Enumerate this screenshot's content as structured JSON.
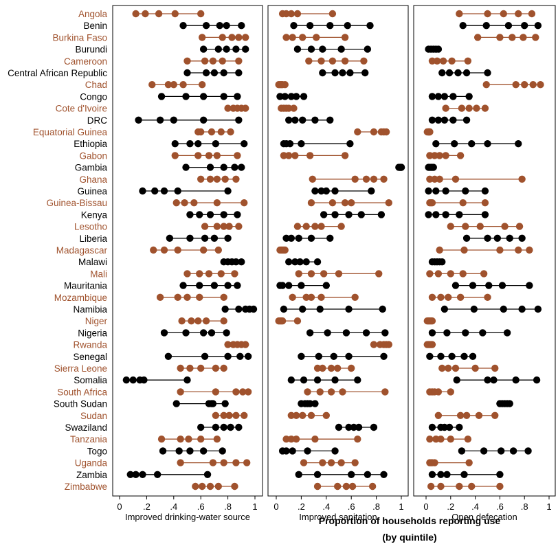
{
  "colors": {
    "odd": "#a0522d",
    "even": "#000000",
    "frame": "#000000",
    "background": "#ffffff"
  },
  "chart_data": {
    "type": "scatter",
    "subtype": "dot-range plot",
    "xlabel": "Proportion of households reporting use",
    "xlabel_sub": "(by quintile)",
    "xlim": [
      0,
      1
    ],
    "xticks": [
      0,
      0.2,
      0.4,
      0.6,
      0.8,
      1
    ],
    "xtick_labels": [
      "0",
      ".2",
      ".4",
      ".6",
      ".8",
      "1"
    ],
    "panels": [
      "Improved drinking-water source",
      "Improved sanitation",
      "Open defecation"
    ],
    "countries": [
      {
        "name": "Angola",
        "values": [
          [
            0.12,
            0.19,
            0.29,
            0.41,
            0.6
          ],
          [
            0.05,
            0.08,
            0.12,
            0.17,
            0.45
          ],
          [
            0.27,
            0.5,
            0.63,
            0.75,
            0.86
          ]
        ]
      },
      {
        "name": "Benin",
        "values": [
          [
            0.47,
            0.64,
            0.74,
            0.79,
            0.9
          ],
          [
            0.14,
            0.27,
            0.43,
            0.57,
            0.75
          ],
          [
            0.3,
            0.49,
            0.67,
            0.8,
            0.91
          ]
        ]
      },
      {
        "name": "Burkina Faso",
        "values": [
          [
            0.61,
            0.76,
            0.83,
            0.88,
            0.93
          ],
          [
            0.08,
            0.13,
            0.21,
            0.32,
            0.55
          ],
          [
            0.42,
            0.6,
            0.7,
            0.79,
            0.89
          ]
        ]
      },
      {
        "name": "Burundi",
        "values": [
          [
            0.62,
            0.73,
            0.79,
            0.86,
            0.93
          ],
          [
            0.17,
            0.28,
            0.37,
            0.52,
            0.73
          ],
          [
            0.02,
            0.04,
            0.06,
            0.08,
            0.1
          ]
        ]
      },
      {
        "name": "Cameroon",
        "values": [
          [
            0.5,
            0.63,
            0.69,
            0.76,
            0.88
          ],
          [
            0.26,
            0.36,
            0.45,
            0.55,
            0.7
          ],
          [
            0.05,
            0.09,
            0.14,
            0.21,
            0.34
          ]
        ]
      },
      {
        "name": "Central African Republic",
        "values": [
          [
            0.5,
            0.64,
            0.7,
            0.77,
            0.88
          ],
          [
            0.37,
            0.47,
            0.53,
            0.59,
            0.71
          ],
          [
            0.13,
            0.19,
            0.26,
            0.33,
            0.5
          ]
        ]
      },
      {
        "name": "Chad",
        "values": [
          [
            0.24,
            0.36,
            0.4,
            0.47,
            0.61
          ],
          [
            0.02,
            0.03,
            0.04,
            0.05,
            0.07
          ],
          [
            0.49,
            0.73,
            0.8,
            0.87,
            0.93
          ]
        ]
      },
      {
        "name": "Congo",
        "values": [
          [
            0.31,
            0.49,
            0.62,
            0.77,
            0.87
          ],
          [
            0.03,
            0.07,
            0.12,
            0.16,
            0.22
          ],
          [
            0.05,
            0.1,
            0.15,
            0.22,
            0.35
          ]
        ]
      },
      {
        "name": "Cote d'Ivoire",
        "values": [
          [
            0.8,
            0.84,
            0.87,
            0.9,
            0.93
          ],
          [
            0.04,
            0.06,
            0.08,
            0.1,
            0.14
          ],
          [
            0.16,
            0.29,
            0.35,
            0.41,
            0.48
          ]
        ]
      },
      {
        "name": "DRC",
        "values": [
          [
            0.14,
            0.3,
            0.4,
            0.62,
            0.88
          ],
          [
            0.1,
            0.15,
            0.21,
            0.31,
            0.43
          ],
          [
            0.05,
            0.1,
            0.15,
            0.22,
            0.33
          ]
        ]
      },
      {
        "name": "Equatorial Guinea",
        "values": [
          [
            0.58,
            0.6,
            0.68,
            0.75,
            0.82
          ],
          [
            0.65,
            0.78,
            0.84,
            0.86,
            0.88
          ],
          [
            0.01,
            0.02,
            0.02,
            0.03,
            0.03
          ]
        ]
      },
      {
        "name": "Ethiopia",
        "values": [
          [
            0.41,
            0.52,
            0.58,
            0.71,
            0.92
          ],
          [
            0.06,
            0.08,
            0.11,
            0.2,
            0.59
          ],
          [
            0.08,
            0.23,
            0.37,
            0.5,
            0.75
          ]
        ]
      },
      {
        "name": "Gabon",
        "values": [
          [
            0.41,
            0.58,
            0.66,
            0.72,
            0.87
          ],
          [
            0.06,
            0.1,
            0.15,
            0.27,
            0.55
          ],
          [
            0.03,
            0.07,
            0.11,
            0.16,
            0.28
          ]
        ]
      },
      {
        "name": "Gambia",
        "values": [
          [
            0.49,
            0.67,
            0.77,
            0.85,
            0.9
          ],
          [
            0.98,
            0.99,
            0.99,
            1.0,
            1.0
          ],
          [
            0.02,
            0.03,
            0.04,
            0.05,
            0.06
          ]
        ]
      },
      {
        "name": "Ghana",
        "values": [
          [
            0.6,
            0.67,
            0.72,
            0.78,
            0.86
          ],
          [
            0.29,
            0.63,
            0.72,
            0.78,
            0.86
          ],
          [
            0.03,
            0.07,
            0.11,
            0.24,
            0.78
          ]
        ]
      },
      {
        "name": "Guinea",
        "values": [
          [
            0.17,
            0.26,
            0.33,
            0.43,
            0.8
          ],
          [
            0.31,
            0.36,
            0.4,
            0.47,
            0.76
          ],
          [
            0.02,
            0.08,
            0.16,
            0.32,
            0.48
          ]
        ]
      },
      {
        "name": "Guinea-Bissau",
        "values": [
          [
            0.42,
            0.48,
            0.55,
            0.72,
            0.92
          ],
          [
            0.28,
            0.45,
            0.55,
            0.6,
            0.9
          ],
          [
            0.03,
            0.04,
            0.05,
            0.3,
            0.48
          ]
        ]
      },
      {
        "name": "Kenya",
        "values": [
          [
            0.52,
            0.59,
            0.67,
            0.77,
            0.87
          ],
          [
            0.38,
            0.47,
            0.58,
            0.68,
            0.84
          ],
          [
            0.02,
            0.08,
            0.16,
            0.27,
            0.48
          ]
        ]
      },
      {
        "name": "Lesotho",
        "values": [
          [
            0.63,
            0.72,
            0.77,
            0.81,
            0.88
          ],
          [
            0.17,
            0.24,
            0.31,
            0.36,
            0.52
          ],
          [
            0.2,
            0.32,
            0.44,
            0.64,
            0.76
          ]
        ]
      },
      {
        "name": "Liberia",
        "values": [
          [
            0.37,
            0.52,
            0.63,
            0.7,
            0.8
          ],
          [
            0.08,
            0.12,
            0.18,
            0.28,
            0.43
          ],
          [
            0.33,
            0.5,
            0.58,
            0.68,
            0.78
          ]
        ]
      },
      {
        "name": "Madagascar",
        "values": [
          [
            0.25,
            0.33,
            0.43,
            0.62,
            0.73
          ],
          [
            0.03,
            0.04,
            0.05,
            0.06,
            0.07
          ],
          [
            0.11,
            0.31,
            0.6,
            0.75,
            0.84
          ]
        ]
      },
      {
        "name": "Malawi",
        "values": [
          [
            0.77,
            0.8,
            0.83,
            0.86,
            0.9
          ],
          [
            0.1,
            0.15,
            0.19,
            0.24,
            0.33
          ],
          [
            0.05,
            0.07,
            0.09,
            0.11,
            0.13
          ]
        ]
      },
      {
        "name": "Mali",
        "values": [
          [
            0.5,
            0.59,
            0.66,
            0.75,
            0.85
          ],
          [
            0.18,
            0.28,
            0.38,
            0.5,
            0.82
          ],
          [
            0.03,
            0.1,
            0.2,
            0.3,
            0.47
          ]
        ]
      },
      {
        "name": "Mauritania",
        "values": [
          [
            0.47,
            0.59,
            0.7,
            0.8,
            0.87
          ],
          [
            0.03,
            0.05,
            0.1,
            0.2,
            0.4
          ],
          [
            0.24,
            0.38,
            0.51,
            0.62,
            0.84
          ]
        ]
      },
      {
        "name": "Mozambique",
        "values": [
          [
            0.3,
            0.43,
            0.5,
            0.59,
            0.77
          ],
          [
            0.13,
            0.24,
            0.28,
            0.36,
            0.63
          ],
          [
            0.05,
            0.12,
            0.18,
            0.28,
            0.5
          ]
        ]
      },
      {
        "name": "Namibia",
        "values": [
          [
            0.78,
            0.88,
            0.93,
            0.96,
            0.99
          ],
          [
            0.06,
            0.21,
            0.35,
            0.58,
            0.85
          ],
          [
            0.15,
            0.39,
            0.63,
            0.78,
            0.91
          ]
        ]
      },
      {
        "name": "Niger",
        "values": [
          [
            0.46,
            0.53,
            0.58,
            0.64,
            0.77
          ],
          [
            0.02,
            0.03,
            0.04,
            0.05,
            0.17
          ],
          [
            0.01,
            0.02,
            0.03,
            0.04,
            0.05
          ]
        ]
      },
      {
        "name": "Nigeria",
        "values": [
          [
            0.33,
            0.49,
            0.62,
            0.68,
            0.79
          ],
          [
            0.27,
            0.41,
            0.56,
            0.72,
            0.87
          ],
          [
            0.05,
            0.17,
            0.32,
            0.46,
            0.66
          ]
        ]
      },
      {
        "name": "Rwanda",
        "values": [
          [
            0.8,
            0.84,
            0.87,
            0.9,
            0.93
          ],
          [
            0.78,
            0.83,
            0.86,
            0.88,
            0.9
          ],
          [
            0.01,
            0.02,
            0.03,
            0.04,
            0.05
          ]
        ]
      },
      {
        "name": "Senegal",
        "values": [
          [
            0.36,
            0.63,
            0.8,
            0.89,
            0.95
          ],
          [
            0.2,
            0.34,
            0.46,
            0.58,
            0.86
          ],
          [
            0.03,
            0.12,
            0.21,
            0.31,
            0.38
          ]
        ]
      },
      {
        "name": "Sierra Leone",
        "values": [
          [
            0.45,
            0.52,
            0.6,
            0.71,
            0.77
          ],
          [
            0.33,
            0.37,
            0.44,
            0.49,
            0.6
          ],
          [
            0.13,
            0.18,
            0.24,
            0.4,
            0.56
          ]
        ]
      },
      {
        "name": "Somalia",
        "values": [
          [
            0.05,
            0.1,
            0.15,
            0.18,
            0.5
          ],
          [
            0.12,
            0.22,
            0.33,
            0.47,
            0.65
          ],
          [
            0.25,
            0.5,
            0.55,
            0.73,
            0.9
          ]
        ]
      },
      {
        "name": "South Africa",
        "values": [
          [
            0.45,
            0.71,
            0.86,
            0.91,
            0.95
          ],
          [
            0.25,
            0.35,
            0.44,
            0.53,
            0.87
          ],
          [
            0.03,
            0.05,
            0.07,
            0.1,
            0.2
          ]
        ]
      },
      {
        "name": "South Sudan",
        "values": [
          [
            0.42,
            0.66,
            0.68,
            0.69,
            0.78
          ],
          [
            0.2,
            0.23,
            0.25,
            0.27,
            0.31
          ],
          [
            0.6,
            0.62,
            0.64,
            0.66,
            0.68
          ]
        ]
      },
      {
        "name": "Sudan",
        "values": [
          [
            0.71,
            0.77,
            0.81,
            0.86,
            0.92
          ],
          [
            0.12,
            0.16,
            0.21,
            0.28,
            0.4
          ],
          [
            0.1,
            0.28,
            0.33,
            0.43,
            0.56
          ]
        ]
      },
      {
        "name": "Swaziland",
        "values": [
          [
            0.6,
            0.71,
            0.77,
            0.82,
            0.88
          ],
          [
            0.5,
            0.58,
            0.62,
            0.66,
            0.78
          ],
          [
            0.05,
            0.12,
            0.15,
            0.19,
            0.27
          ]
        ]
      },
      {
        "name": "Tanzania",
        "values": [
          [
            0.31,
            0.45,
            0.51,
            0.6,
            0.72
          ],
          [
            0.08,
            0.12,
            0.16,
            0.31,
            0.65
          ],
          [
            0.03,
            0.08,
            0.12,
            0.2,
            0.34
          ]
        ]
      },
      {
        "name": "Togo",
        "values": [
          [
            0.32,
            0.44,
            0.52,
            0.62,
            0.76
          ],
          [
            0.05,
            0.08,
            0.13,
            0.25,
            0.47
          ],
          [
            0.29,
            0.47,
            0.61,
            0.71,
            0.83
          ]
        ]
      },
      {
        "name": "Uganda",
        "values": [
          [
            0.45,
            0.69,
            0.77,
            0.86,
            0.94
          ],
          [
            0.22,
            0.37,
            0.44,
            0.52,
            0.63
          ],
          [
            0.03,
            0.04,
            0.05,
            0.07,
            0.35
          ]
        ]
      },
      {
        "name": "Zambia",
        "values": [
          [
            0.08,
            0.12,
            0.17,
            0.28,
            0.65
          ],
          [
            0.18,
            0.33,
            0.6,
            0.73,
            0.86
          ],
          [
            0.05,
            0.12,
            0.17,
            0.31,
            0.6
          ]
        ]
      },
      {
        "name": "Zimbabwe",
        "values": [
          [
            0.56,
            0.61,
            0.67,
            0.73,
            0.85
          ],
          [
            0.33,
            0.49,
            0.56,
            0.61,
            0.77
          ],
          [
            0.04,
            0.12,
            0.27,
            0.37,
            0.6
          ]
        ]
      }
    ]
  }
}
